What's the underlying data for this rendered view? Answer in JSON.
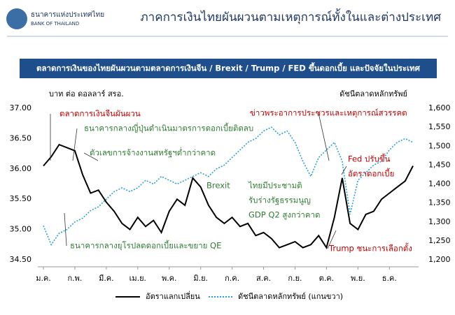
{
  "header": {
    "org_thai": "ธนาคารแห่งประเทศไทย",
    "org_english": "BANK OF THAILAND"
  },
  "chart_data": {
    "type": "line",
    "title": "ภาคการเงินไทยผันผวนตามเหตุการณ์ทั้งในและต่างประเทศ",
    "subtitle": "ตลาดการเงินของไทยผันผวนตามตลาดการเงินจีน / Brexit / Trump / FED ขึ้นดอกเบี้ย และปัจจัยในประเทศ",
    "y_label": "บาท ต่อ ดอลลาร์ สรอ.",
    "y2_label": "ดัชนีตลาดหลักทรัพย์",
    "categories": [
      "ม.ค.",
      null,
      null,
      null,
      "ก.พ.",
      null,
      null,
      null,
      "มี.ค.",
      null,
      null,
      null,
      "เม.ย.",
      null,
      null,
      null,
      "พ.ค.",
      null,
      null,
      null,
      "มิ.ย.",
      null,
      null,
      null,
      "ก.ค.",
      null,
      null,
      null,
      "ส.ค.",
      null,
      null,
      null,
      "ก.ย.",
      null,
      null,
      null,
      "ต.ค.",
      null,
      null,
      null,
      "พ.ย.",
      null,
      null,
      null,
      "ธ.ค.",
      null,
      null,
      null
    ],
    "series": [
      {
        "name": "อัตราแลกเปลี่ยน",
        "color": "#000000",
        "dash": false,
        "values": [
          36.05,
          36.2,
          36.4,
          36.35,
          36.3,
          35.9,
          35.6,
          35.65,
          35.45,
          35.3,
          35.1,
          35.0,
          35.2,
          35.05,
          35.15,
          34.95,
          35.3,
          35.5,
          35.4,
          35.85,
          35.7,
          35.4,
          35.2,
          35.1,
          35.2,
          35.05,
          35.1,
          34.9,
          34.95,
          34.85,
          34.7,
          34.75,
          34.8,
          34.7,
          34.75,
          34.9,
          34.7,
          35.2,
          35.85,
          35.1,
          35.0,
          35.25,
          35.3,
          35.5,
          35.6,
          35.7,
          35.8,
          36.05
        ]
      },
      {
        "name": "ดัชนีตลาดหลักทรัพย์ (แกนขวา)",
        "color": "#29a3d6",
        "dash": true,
        "axis": "y2",
        "values": [
          1290,
          1240,
          1270,
          1280,
          1300,
          1310,
          1330,
          1340,
          1360,
          1380,
          1390,
          1380,
          1390,
          1410,
          1400,
          1420,
          1410,
          1400,
          1410,
          1420,
          1430,
          1420,
          1440,
          1450,
          1470,
          1490,
          1510,
          1520,
          1540,
          1550,
          1530,
          1540,
          1510,
          1460,
          1420,
          1470,
          1490,
          1510,
          1460,
          1320,
          1410,
          1430,
          1450,
          1460,
          1490,
          1510,
          1520,
          1510
        ]
      }
    ],
    "ylim": [
      34.5,
      37
    ],
    "yticks": [
      {
        "value": 34.5,
        "label": "34.50"
      },
      {
        "value": 35,
        "label": "35.00"
      },
      {
        "value": 35.5,
        "label": "35.50"
      },
      {
        "value": 36,
        "label": "36.00"
      },
      {
        "value": 36.5,
        "label": "36.50"
      },
      {
        "value": 37,
        "label": "37.00"
      }
    ],
    "y2lim": [
      1200,
      1600
    ],
    "y2ticks": [
      {
        "value": 1200,
        "label": "1,200"
      },
      {
        "value": 1250,
        "label": "1,250"
      },
      {
        "value": 1300,
        "label": "1,300"
      },
      {
        "value": 1350,
        "label": "1,350"
      },
      {
        "value": 1400,
        "label": "1,400"
      },
      {
        "value": 1450,
        "label": "1,450"
      },
      {
        "value": 1500,
        "label": "1,500"
      },
      {
        "value": 1550,
        "label": "1,550"
      },
      {
        "value": 1600,
        "label": "1,600"
      }
    ],
    "grid": false,
    "annotations": [
      {
        "text": "ตลาดการเงินจีนผันผวน",
        "color": "#c00000"
      },
      {
        "text": "ธนาคารกลางญี่ปุ่นดำเนินมาตรการดอกเบี้ยติดลบ",
        "color": "#2e7d32"
      },
      {
        "text": "ตัวเลขการจ้างงานสหรัฐฯต่ำกว่าคาด",
        "color": "#2e7d32"
      },
      {
        "text": "Brexit",
        "color": "#2e7d32"
      },
      {
        "text": "ไทยมีประชามติ",
        "color": "#2e7d32"
      },
      {
        "text": "รับร่างรัฐธรรมนูญ",
        "color": "#2e7d32"
      },
      {
        "text": "GDP Q2 สูงกว่าคาด",
        "color": "#2e7d32"
      },
      {
        "text": "ธนาคารกลางยุโรปลดดอกเบี้ยและขยาย QE",
        "color": "#2e7d32"
      },
      {
        "text": "ข่าวพระอาการประชวรและเหตุการณ์สวรรคต",
        "color": "#c00000"
      },
      {
        "text": "Fed ปรับขึ้น",
        "color": "#c00000"
      },
      {
        "text": "อัตราดอกเบี้ย",
        "color": "#c00000"
      },
      {
        "text": "Trump ชนะการเลือกตั้ง",
        "color": "#c00000"
      }
    ]
  }
}
